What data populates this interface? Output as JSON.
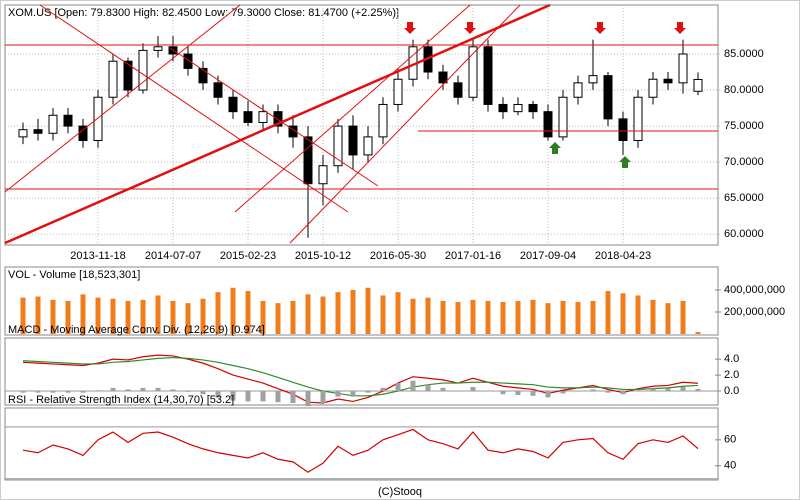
{
  "chart_data": [
    {
      "type": "candlestick",
      "title": "XOM.US [Open: 79.8300  High: 82.4500  Low: 79.3000  Close: 81.4700  (+2.25%)]",
      "categories": [
        null,
        null,
        null,
        null,
        null,
        "2013-11-18",
        null,
        null,
        null,
        null,
        "2014-07-07",
        null,
        null,
        null,
        null,
        "2015-02-23",
        null,
        null,
        null,
        null,
        "2015-10-12",
        null,
        null,
        null,
        null,
        "2016-05-30",
        null,
        null,
        null,
        null,
        "2017-01-16",
        null,
        null,
        null,
        null,
        "2017-09-04",
        null,
        null,
        null,
        null,
        "2018-04-23",
        null,
        null,
        null,
        null,
        null
      ],
      "open": [
        73.5,
        74.5,
        74,
        76.5,
        75,
        73,
        79,
        84,
        80,
        85.5,
        86,
        85,
        83,
        81,
        79,
        77,
        75.5,
        77,
        75,
        73.5,
        67,
        69.5,
        75,
        71,
        73.5,
        78,
        81.5,
        86,
        82.5,
        81,
        79,
        86,
        78,
        77,
        78,
        77,
        73.5,
        79,
        81,
        82,
        76,
        73,
        79,
        81.5,
        81,
        79.83
      ],
      "high": [
        75.5,
        76,
        77.5,
        77.5,
        76,
        80,
        85,
        84.5,
        86.5,
        87.5,
        87.5,
        86,
        84,
        82,
        80,
        78.5,
        78,
        78,
        76.5,
        75,
        71,
        76,
        76.5,
        75,
        79,
        83,
        87,
        87,
        83.5,
        82,
        87,
        87,
        79,
        79,
        78.5,
        78,
        80,
        82,
        87,
        82.5,
        77,
        80,
        82.5,
        82.5,
        87,
        82.45
      ],
      "low": [
        72.5,
        73,
        73,
        74,
        72,
        72,
        78,
        79,
        79.5,
        84.5,
        84,
        82,
        80,
        78,
        76,
        75,
        74.5,
        74,
        72,
        59.5,
        64,
        68.5,
        69,
        70,
        72.5,
        77,
        80.5,
        81.5,
        80,
        78,
        78.5,
        77,
        76,
        76.5,
        76,
        73,
        73,
        78,
        80,
        75,
        71,
        72,
        78,
        80,
        79.5,
        79.3
      ],
      "close": [
        74.5,
        74,
        76.5,
        75,
        73,
        79,
        84,
        80,
        85.5,
        86,
        85,
        83,
        81,
        79,
        77,
        75.5,
        77,
        75,
        73.5,
        67,
        69.5,
        75,
        71,
        73.5,
        78,
        81.5,
        86,
        82.5,
        81,
        79,
        86,
        78,
        77,
        78,
        77,
        73.5,
        79,
        81,
        82,
        76,
        73,
        79,
        81.5,
        81,
        85,
        81.47
      ],
      "up_color": "#ffffff",
      "down_color": "#000000",
      "ylim": [
        58.5,
        91.8
      ],
      "yticks": [
        {
          "value": 60,
          "label": "60.0000"
        },
        {
          "value": 65,
          "label": "65.0000"
        },
        {
          "value": 70,
          "label": "70.0000"
        },
        {
          "value": 75,
          "label": "75.0000"
        },
        {
          "value": 80,
          "label": "80.0000"
        },
        {
          "value": 85,
          "label": "85.0000"
        }
      ],
      "grid": true
    },
    {
      "type": "bar",
      "title": "VOL - Volume [18,523,301]",
      "values": [
        330000000,
        340000000,
        310000000,
        300000000,
        360000000,
        330000000,
        320000000,
        300000000,
        310000000,
        350000000,
        300000000,
        280000000,
        320000000,
        380000000,
        420000000,
        390000000,
        300000000,
        280000000,
        300000000,
        360000000,
        340000000,
        380000000,
        400000000,
        420000000,
        350000000,
        380000000,
        320000000,
        330000000,
        300000000,
        290000000,
        310000000,
        300000000,
        290000000,
        300000000,
        310000000,
        280000000,
        300000000,
        290000000,
        300000000,
        390000000,
        370000000,
        350000000,
        310000000,
        280000000,
        300000000,
        18523301
      ],
      "color": "#f07c1c",
      "ylim": [
        0,
        445000000
      ],
      "yticks": [
        {
          "value": 200000000,
          "label": "200,000,000"
        },
        {
          "value": 400000000,
          "label": "400,000,000"
        }
      ]
    },
    {
      "type": "macd",
      "title": "MACD - Moving Average Conv. Div. (12,26,9) [0.974]",
      "series": [
        {
          "name": "MACD",
          "color": "#d40000",
          "values": [
            3.6,
            3.5,
            3.4,
            3.3,
            3.2,
            3.5,
            4.0,
            3.9,
            4.3,
            4.5,
            4.4,
            4.0,
            3.5,
            2.8,
            2.0,
            1.5,
            1.0,
            0.3,
            -0.4,
            -1.4,
            -1.5,
            -1.0,
            -1.3,
            -0.8,
            0.0,
            1.0,
            1.8,
            1.6,
            1.4,
            1.0,
            1.6,
            1.1,
            0.6,
            0.4,
            0.2,
            -0.3,
            0.1,
            0.4,
            0.7,
            0.2,
            -0.2,
            0.3,
            0.6,
            0.7,
            1.1,
            0.974
          ]
        },
        {
          "name": "Signal",
          "color": "#2e8b2e",
          "values": [
            3.8,
            3.7,
            3.6,
            3.5,
            3.4,
            3.4,
            3.6,
            3.7,
            3.9,
            4.1,
            4.2,
            4.1,
            3.9,
            3.6,
            3.2,
            2.8,
            2.3,
            1.7,
            1.1,
            0.5,
            0.0,
            -0.3,
            -0.6,
            -0.6,
            -0.4,
            0.0,
            0.5,
            0.8,
            1.0,
            1.0,
            1.1,
            1.1,
            1.0,
            0.9,
            0.8,
            0.5,
            0.4,
            0.4,
            0.5,
            0.4,
            0.2,
            0.2,
            0.3,
            0.4,
            0.6,
            0.7
          ]
        },
        {
          "name": "Histogram",
          "color": "#a0a0a0",
          "values": [
            -0.2,
            -0.2,
            -0.2,
            -0.2,
            -0.2,
            0.1,
            0.4,
            0.2,
            0.4,
            0.4,
            0.2,
            -0.1,
            -0.4,
            -0.8,
            -1.2,
            -1.3,
            -1.3,
            -1.4,
            -1.5,
            -1.9,
            -1.5,
            -0.7,
            -0.7,
            -0.2,
            0.4,
            1.0,
            1.3,
            0.8,
            0.4,
            0.0,
            0.5,
            0.0,
            -0.4,
            -0.5,
            -0.6,
            -0.8,
            -0.3,
            0.0,
            0.2,
            -0.2,
            -0.4,
            0.1,
            0.3,
            0.3,
            0.5,
            0.27
          ]
        }
      ],
      "ylim": [
        -1.75,
        6.4
      ],
      "yticks": [
        {
          "value": 0,
          "label": "0.0"
        },
        {
          "value": 2,
          "label": "2.0"
        },
        {
          "value": 4,
          "label": "4.0"
        }
      ]
    },
    {
      "type": "line",
      "title": "RSI - Relative Strength Index (14,30,70) [53.2]",
      "values": [
        52,
        50,
        56,
        53,
        48,
        60,
        66,
        58,
        65,
        66,
        62,
        57,
        53,
        50,
        48,
        46,
        50,
        45,
        43,
        35,
        42,
        55,
        48,
        52,
        60,
        64,
        68,
        60,
        57,
        53,
        66,
        52,
        50,
        53,
        51,
        46,
        58,
        60,
        61,
        50,
        45,
        57,
        60,
        58,
        63,
        53.2
      ],
      "color": "#d40000",
      "bands": [
        30,
        70
      ],
      "ylim": [
        29,
        83
      ],
      "yticks": [
        40,
        60
      ]
    }
  ],
  "footer": "(C)Stooq"
}
